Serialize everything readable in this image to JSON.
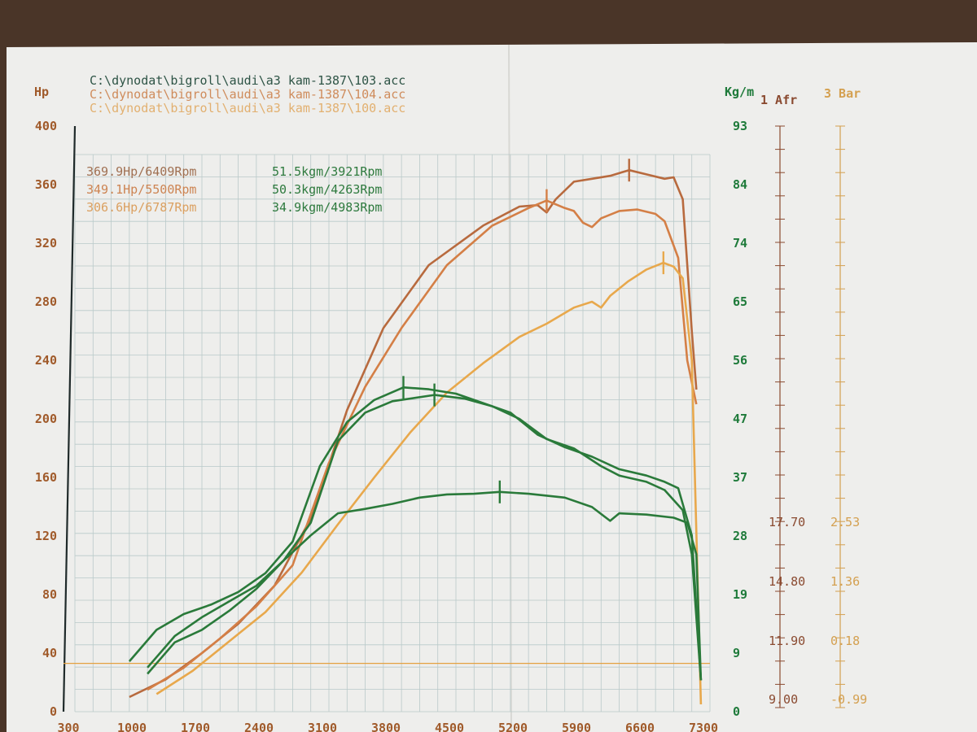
{
  "header": {
    "left_unit": "Hp",
    "right_unit": "Kg/m",
    "afr_label": "1 Afr",
    "bar_label": "3 Bar",
    "files": [
      {
        "text": "C:\\dynodat\\bigroll\\audi\\a3 kam-1387\\103.acc",
        "color": "#2e5446"
      },
      {
        "text": "C:\\dynodat\\bigroll\\audi\\a3 kam-1387\\104.acc",
        "color": "#cf8c5c"
      },
      {
        "text": "C:\\dynodat\\bigroll\\audi\\a3 kam-1387\\100.acc",
        "color": "#e2b070"
      }
    ]
  },
  "summary": {
    "power": [
      {
        "text": "369.9Hp/6409Rpm",
        "color": "#a07052"
      },
      {
        "text": "349.1Hp/5500Rpm",
        "color": "#cd8452"
      },
      {
        "text": "306.6Hp/6787Rpm",
        "color": "#dba060"
      }
    ],
    "torque": [
      {
        "text": "51.5kgm/3921Rpm",
        "color": "#2e7a3e"
      },
      {
        "text": "50.3kgm/4263Rpm",
        "color": "#2e7a3e"
      },
      {
        "text": "34.9kgm/4983Rpm",
        "color": "#2e7a3e"
      }
    ]
  },
  "colors": {
    "hp_axis": "#a05a2a",
    "torque_axis": "#1e7a3a",
    "afr_axis": "#8a4a30",
    "bar_axis": "#d4a050",
    "hp_103": "#b86a3e",
    "hp_104": "#d47f46",
    "hp_100": "#e8a84c",
    "torque": "#2a7a3a",
    "baseline": "#e4a040"
  },
  "chart_data": {
    "type": "line",
    "xlabel": "",
    "x_ticks": [
      "300",
      "1000",
      "1700",
      "2400",
      "3100",
      "3800",
      "4500",
      "5200",
      "5900",
      "6600",
      "7300"
    ],
    "xlim": [
      300,
      7300
    ],
    "left_axis": {
      "label": "Hp",
      "ticks": [
        "0",
        "40",
        "80",
        "120",
        "160",
        "200",
        "240",
        "280",
        "320",
        "360",
        "400"
      ],
      "range": [
        0,
        400
      ]
    },
    "right_axis": {
      "label": "Kg/m",
      "ticks": [
        "0",
        "9",
        "19",
        "28",
        "37",
        "47",
        "56",
        "65",
        "74",
        "84",
        "93"
      ],
      "range": [
        0,
        93
      ]
    },
    "afr_axis": {
      "label": "1 Afr",
      "ticks": [
        "9.00",
        "11.90",
        "14.80",
        "17.70"
      ]
    },
    "bar_axis": {
      "label": "3 Bar",
      "ticks": [
        "-0.99",
        "0.18",
        "1.36",
        "2.53"
      ]
    },
    "series": [
      {
        "name": "103.acc",
        "unit": "Hp",
        "x": [
          900,
          1300,
          1700,
          2100,
          2500,
          2900,
          3300,
          3700,
          4200,
          4800,
          5200,
          5400,
          5500,
          5600,
          5800,
          6000,
          6200,
          6409,
          6600,
          6800,
          6900,
          7000,
          7100,
          7150
        ],
        "y": [
          10,
          22,
          40,
          60,
          86,
          132,
          206,
          262,
          305,
          332,
          345,
          346,
          341,
          350,
          362,
          364,
          366,
          369.9,
          367,
          364,
          365,
          350,
          260,
          220
        ],
        "peak": {
          "x": 6409,
          "y": 369.9
        }
      },
      {
        "name": "104.acc",
        "unit": "Hp",
        "x": [
          1100,
          1500,
          1900,
          2300,
          2700,
          3100,
          3500,
          3900,
          4400,
          4900,
          5300,
          5500,
          5700,
          5800,
          5900,
          6000,
          6100,
          6300,
          6500,
          6700,
          6800,
          6950,
          7050,
          7150
        ],
        "y": [
          15,
          30,
          50,
          72,
          100,
          170,
          222,
          262,
          305,
          332,
          344,
          349.1,
          344,
          342,
          334,
          331,
          337,
          342,
          343,
          340,
          335,
          310,
          240,
          210
        ],
        "peak": {
          "x": 5500,
          "y": 349.1
        }
      },
      {
        "name": "100.acc",
        "unit": "Hp",
        "x": [
          1200,
          1600,
          2000,
          2400,
          2800,
          3200,
          3600,
          4000,
          4400,
          4800,
          5200,
          5500,
          5800,
          6000,
          6100,
          6200,
          6400,
          6600,
          6787,
          6900,
          7000,
          7100,
          7200
        ],
        "y": [
          12,
          28,
          48,
          68,
          95,
          128,
          160,
          191,
          218,
          238,
          256,
          265,
          276,
          280,
          276,
          284,
          294,
          302,
          306.6,
          304,
          296,
          240,
          5
        ],
        "peak": {
          "x": 6787,
          "y": 306.6
        }
      },
      {
        "name": "103.acc",
        "unit": "Kg/m",
        "x": [
          900,
          1200,
          1500,
          1800,
          2100,
          2400,
          2700,
          3000,
          3300,
          3600,
          3921,
          4200,
          4500,
          4800,
          5100,
          5400,
          5700,
          6000,
          6300,
          6600,
          6800,
          6950,
          7100,
          7200
        ],
        "y": [
          8,
          13,
          15.5,
          17,
          19,
          22,
          27,
          39,
          46,
          49.5,
          51.5,
          51.2,
          50.5,
          49,
          47.5,
          44,
          42,
          40.5,
          38.5,
          37.5,
          36.5,
          35.5,
          28,
          5
        ],
        "peak": {
          "x": 3921,
          "y": 51.5
        }
      },
      {
        "name": "104.acc",
        "unit": "Kg/m",
        "x": [
          1100,
          1400,
          1700,
          2000,
          2300,
          2600,
          2900,
          3200,
          3500,
          3800,
          4263,
          4600,
          4900,
          5200,
          5500,
          5800,
          6100,
          6300,
          6600,
          6800,
          7000,
          7100,
          7200
        ],
        "y": [
          7,
          12,
          15,
          17.5,
          20,
          24,
          30,
          43,
          47.5,
          49.3,
          50.3,
          49.7,
          48.5,
          46.5,
          43.3,
          41.8,
          39,
          37.5,
          36.5,
          35.2,
          32,
          25,
          5
        ],
        "peak": {
          "x": 4263,
          "y": 50.3
        }
      },
      {
        "name": "100.acc",
        "unit": "Kg/m",
        "x": [
          1100,
          1400,
          1700,
          2000,
          2300,
          2600,
          2900,
          3200,
          3500,
          3800,
          4100,
          4400,
          4700,
          4983,
          5300,
          5700,
          6000,
          6200,
          6300,
          6600,
          6900,
          7050,
          7150,
          7200
        ],
        "y": [
          6,
          11,
          13,
          16,
          19.5,
          24,
          28,
          31.5,
          32.2,
          33,
          34,
          34.5,
          34.6,
          34.9,
          34.6,
          34,
          32.5,
          30.3,
          31.5,
          31.3,
          30.8,
          30,
          25,
          5
        ],
        "peak": {
          "x": 4983,
          "y": 34.9
        }
      }
    ],
    "baseline_hp": 33,
    "grid": true
  }
}
